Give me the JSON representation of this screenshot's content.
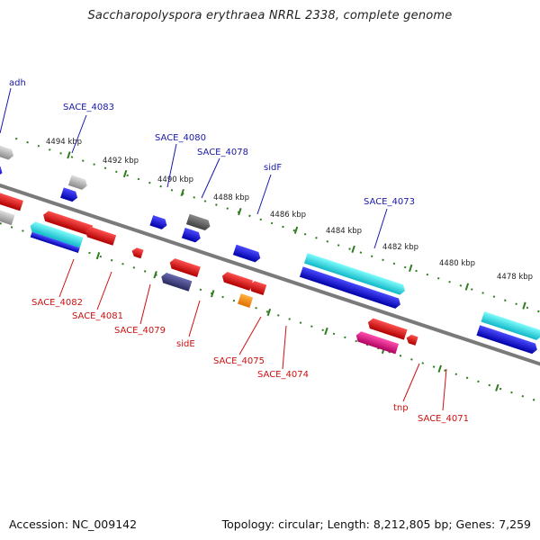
{
  "title": "Saccharopolyspora erythraea NRRL 2338, complete genome",
  "accession": "Accession: NC_009142",
  "summary": "Topology: circular; Length: 8,212,805 bp; Genes: 7,259",
  "kbp_labels": [
    "4494 kbp",
    "4492 kbp",
    "4490 kbp",
    "4488 kbp",
    "4486 kbp",
    "4484 kbp",
    "4482 kbp",
    "4480 kbp",
    "4478 kbp"
  ],
  "forward_labels": [
    "adh",
    "SACE_4083",
    "SACE_4080",
    "SACE_4078",
    "sidF",
    "SACE_4073"
  ],
  "reverse_labels": [
    "SACE_4082",
    "SACE_4081",
    "SACE_4079",
    "sidE",
    "SACE_4075",
    "SACE_4074",
    "tnp",
    "SACE_4071"
  ],
  "colors": {
    "backbone": "#7a7a7a",
    "tick": "#2e7d1e",
    "forward_label": "#1a1aa8",
    "reverse_label": "#cc1111",
    "gene_red": "#e01010",
    "gene_blue": "#1010e0",
    "gene_cyan": "#20e0e0",
    "gene_gray": "#b0b0b0",
    "gene_darkgray": "#606060",
    "gene_navy": "#404080",
    "gene_magenta": "#e01080",
    "gene_orange": "#ff8c00"
  }
}
